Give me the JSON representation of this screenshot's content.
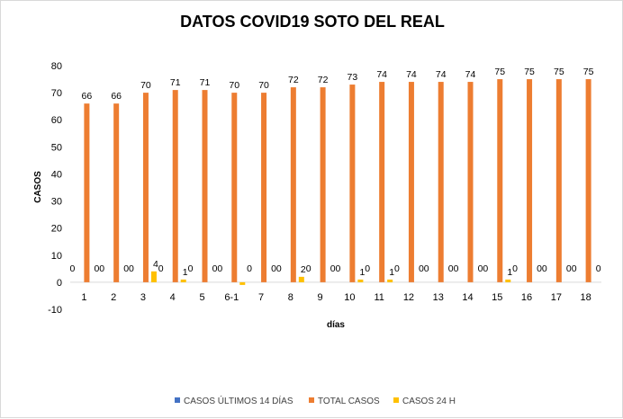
{
  "chart_data": {
    "type": "bar",
    "title": "DATOS COVID19 SOTO DEL REAL",
    "xlabel": "días",
    "ylabel": "CASOS",
    "ylim": [
      -10,
      80
    ],
    "yticks": [
      -10,
      0,
      10,
      20,
      30,
      40,
      50,
      60,
      70,
      80
    ],
    "grid": false,
    "legend_position": "bottom",
    "categories": [
      "1",
      "2",
      "3",
      "4",
      "5",
      "6-1",
      "7",
      "8",
      "9",
      "10",
      "11",
      "12",
      "13",
      "14",
      "15",
      "16",
      "17",
      "18"
    ],
    "series": [
      {
        "name": "CASOS ÚLTIMOS 14 DÍAS",
        "color": "#4472c4",
        "values": [
          0,
          0,
          0,
          0,
          0,
          0,
          0,
          0,
          0,
          0,
          0,
          0,
          0,
          0,
          0,
          0,
          0,
          0
        ],
        "labels": [
          "0",
          "0",
          "0",
          "0",
          "0",
          "0",
          "0",
          "0",
          "0",
          "0",
          "0",
          "0",
          "0",
          "0",
          "0",
          "0",
          "0",
          "0"
        ]
      },
      {
        "name": "TOTAL CASOS",
        "color": "#ed7d31",
        "values": [
          66,
          66,
          70,
          71,
          71,
          70,
          70,
          72,
          72,
          73,
          74,
          74,
          74,
          74,
          75,
          75,
          75,
          75
        ],
        "labels": [
          "66",
          "66",
          "70",
          "71",
          "71",
          "70",
          "70",
          "72",
          "72",
          "73",
          "74",
          "74",
          "74",
          "74",
          "75",
          "75",
          "75",
          "75"
        ]
      },
      {
        "name": "CASOS 24 H",
        "color": "#ffc000",
        "values": [
          0,
          0,
          4,
          1,
          0,
          -1,
          0,
          2,
          0,
          1,
          1,
          0,
          0,
          0,
          1,
          0,
          0,
          0
        ],
        "labels": [
          "0",
          "0",
          "4",
          "1",
          "0",
          "",
          "0",
          "2",
          "0",
          "1",
          "1",
          "0",
          "0",
          "0",
          "1",
          "0",
          "0",
          "0"
        ]
      }
    ]
  }
}
